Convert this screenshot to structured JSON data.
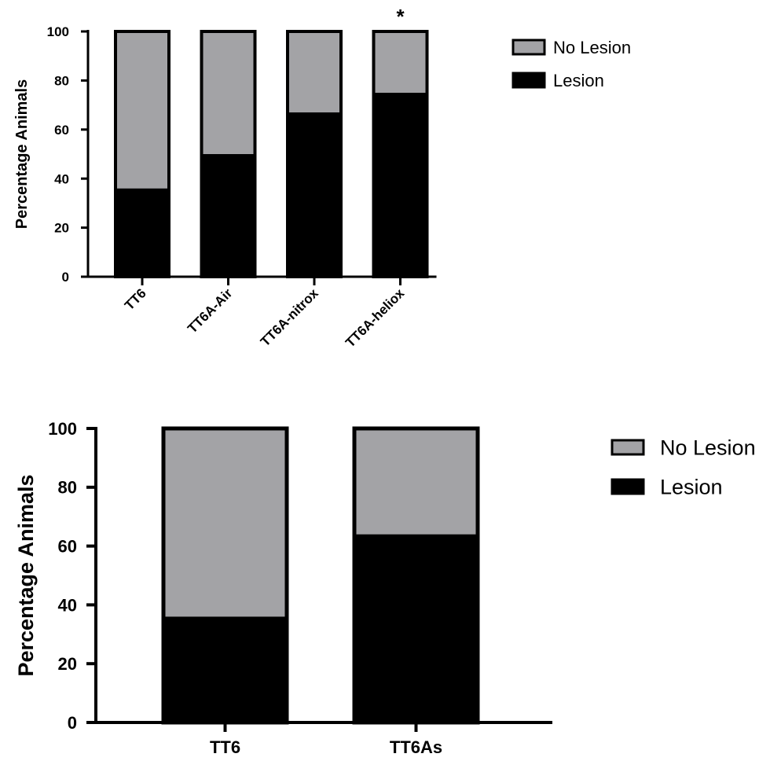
{
  "chart_data": [
    {
      "type": "bar",
      "stacked": true,
      "categories": [
        "TT6",
        "TT6A-Air",
        "TT6A-nitrox",
        "TT6A-heliox"
      ],
      "series": [
        {
          "name": "Lesion",
          "values": [
            36,
            50,
            67,
            75
          ],
          "color": "#000000"
        },
        {
          "name": "No Lesion",
          "values": [
            64,
            50,
            33,
            25
          ],
          "color": "#a3a3a6"
        }
      ],
      "ylabel": "Percentage Animals",
      "xlabel": "",
      "ylim": [
        0,
        100
      ],
      "yticks": [
        0,
        20,
        40,
        60,
        80,
        100
      ],
      "legend": {
        "position": "right",
        "entries": [
          "No Lesion",
          "Lesion"
        ]
      },
      "annotations": [
        {
          "category": "TT6A-heliox",
          "text": "*"
        }
      ],
      "grid": false
    },
    {
      "type": "bar",
      "stacked": true,
      "categories": [
        "TT6",
        "TT6As"
      ],
      "series": [
        {
          "name": "Lesion",
          "values": [
            36,
            64
          ],
          "color": "#000000"
        },
        {
          "name": "No Lesion",
          "values": [
            64,
            36
          ],
          "color": "#a3a3a6"
        }
      ],
      "ylabel": "Percentage Animals",
      "xlabel": "",
      "ylim": [
        0,
        100
      ],
      "yticks": [
        0,
        20,
        40,
        60,
        80,
        100
      ],
      "legend": {
        "position": "right",
        "entries": [
          "No Lesion",
          "Lesion"
        ]
      },
      "grid": false
    }
  ]
}
